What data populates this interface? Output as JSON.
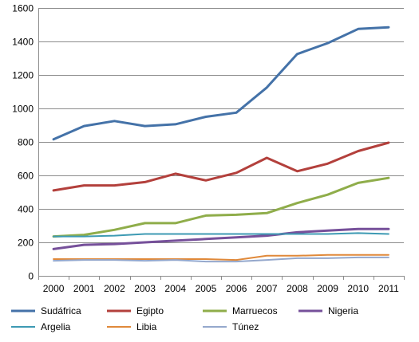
{
  "chart_data": {
    "type": "line",
    "title": "",
    "xlabel": "",
    "ylabel": "",
    "x": [
      "2000",
      "2001",
      "2002",
      "2003",
      "2004",
      "2005",
      "2006",
      "2007",
      "2008",
      "2009",
      "2010",
      "2011"
    ],
    "ylim": [
      0,
      1600
    ],
    "yticks": [
      0,
      200,
      400,
      600,
      800,
      1000,
      1200,
      1400,
      1600
    ],
    "grid": true,
    "legend_position": "bottom",
    "series": [
      {
        "name": "Sudáfrica",
        "color": "#4472a8",
        "values": [
          815,
          895,
          925,
          895,
          905,
          950,
          975,
          1125,
          1325,
          1390,
          1475,
          1485
        ]
      },
      {
        "name": "Egipto",
        "color": "#b3403c",
        "values": [
          510,
          540,
          540,
          560,
          610,
          570,
          615,
          705,
          625,
          670,
          745,
          795
        ]
      },
      {
        "name": "Marruecos",
        "color": "#8fad4a",
        "values": [
          235,
          245,
          275,
          315,
          315,
          360,
          365,
          375,
          435,
          485,
          555,
          585
        ]
      },
      {
        "name": "Nigeria",
        "color": "#76509a",
        "values": [
          160,
          185,
          190,
          200,
          210,
          220,
          230,
          240,
          260,
          270,
          280,
          280
        ]
      },
      {
        "name": "Argelia",
        "color": "#3d9ab3",
        "values": [
          235,
          235,
          240,
          250,
          250,
          250,
          250,
          250,
          250,
          250,
          255,
          250
        ]
      },
      {
        "name": "Libia",
        "color": "#e0893a",
        "values": [
          100,
          100,
          100,
          100,
          100,
          100,
          95,
          120,
          120,
          125,
          125,
          125
        ]
      },
      {
        "name": "Túnez",
        "color": "#95a8cc",
        "values": [
          90,
          95,
          95,
          90,
          95,
          85,
          85,
          95,
          105,
          105,
          110,
          110
        ]
      }
    ]
  }
}
